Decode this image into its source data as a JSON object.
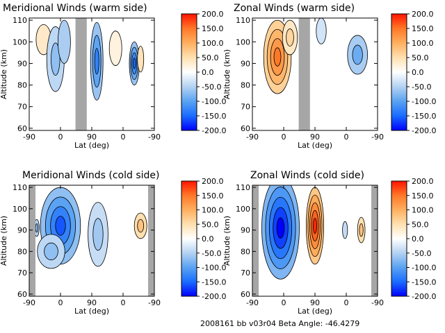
{
  "colors": {
    "scale": [
      "#0000ff",
      "#1a6cff",
      "#5aa2f2",
      "#b4d2f2",
      "#ffffff",
      "#ffe0b0",
      "#ffb060",
      "#ff7828",
      "#ff1400"
    ],
    "gap": "#a6a6a6",
    "contour": "#000000"
  },
  "footer": {
    "text": "2008161 bb v03r04   Beta Angle: -46.4279"
  },
  "chart_data": [
    {
      "type": "heatmap",
      "title": "Meridional Winds (warm side)",
      "xlabel": "Lat (deg)",
      "ylabel": "Altitude (km)",
      "xticks": [
        "-90",
        "0",
        "90",
        "0",
        "-90"
      ],
      "yticks": [
        60,
        70,
        80,
        90,
        100,
        110
      ],
      "ylim": [
        59,
        111
      ],
      "colorbar": {
        "range": [
          -200,
          200
        ],
        "ticks": [
          "200.0",
          "150.0",
          "100.0",
          "50.0",
          "0.0",
          "-50.0",
          "-100.0",
          "-150.0",
          "-200.0"
        ]
      },
      "gaps": [
        [
          74,
          92
        ]
      ],
      "features": [
        {
          "lat": 23,
          "alt": 101,
          "value": 35,
          "wl": 12,
          "wa": 7
        },
        {
          "lat": 42,
          "alt": 92,
          "value": -70,
          "wl": 14,
          "wa": 15
        },
        {
          "lat": 56,
          "alt": 100,
          "value": -55,
          "wl": 10,
          "wa": 10
        },
        {
          "lat": 108,
          "alt": 91,
          "value": -130,
          "wl": 10,
          "wa": 18
        },
        {
          "lat": 138,
          "alt": 97,
          "value": 20,
          "wl": 10,
          "wa": 8
        },
        {
          "lat": 168,
          "alt": 90,
          "value": -150,
          "wl": 8,
          "wa": 10
        },
        {
          "lat": 178,
          "alt": 92,
          "value": 45,
          "wl": 5,
          "wa": 6
        }
      ]
    },
    {
      "type": "heatmap",
      "title": "Zonal Winds (warm side)",
      "xlabel": "Lat (deg)",
      "ylabel": "Altitude (km)",
      "xticks": [
        "-90",
        "0",
        "90",
        "0",
        "-90"
      ],
      "yticks": [
        60,
        70,
        80,
        90,
        100,
        110
      ],
      "ylim": [
        59,
        111
      ],
      "colorbar": {
        "range": [
          -200,
          200
        ],
        "ticks": [
          "200.0",
          "150.0",
          "100.0",
          "50.0",
          "0.0",
          "-50.0",
          "-100.0",
          "-150.0",
          "-200.0"
        ]
      },
      "gaps": [
        [
          74,
          92
        ]
      ],
      "features": [
        {
          "lat": 40,
          "alt": 93,
          "value": 150,
          "wl": 22,
          "wa": 17
        },
        {
          "lat": 60,
          "alt": 102,
          "value": 60,
          "wl": 12,
          "wa": 8
        },
        {
          "lat": 110,
          "alt": 105,
          "value": -30,
          "wl": 8,
          "wa": 6
        },
        {
          "lat": 168,
          "alt": 94,
          "value": -90,
          "wl": 16,
          "wa": 9
        }
      ]
    },
    {
      "type": "heatmap",
      "title": "Meridional Winds (cold side)",
      "xlabel": "Lat (deg)",
      "ylabel": "Altitude (km)",
      "xticks": [
        "-90",
        "0",
        "90",
        "0",
        "-90"
      ],
      "yticks": [
        60,
        70,
        80,
        90,
        100,
        110
      ],
      "ylim": [
        59,
        111
      ],
      "colorbar": {
        "range": [
          -200,
          200
        ],
        "ticks": [
          "200.0",
          "150.0",
          "100.0",
          "50.0",
          "0.0",
          "-50.0",
          "-100.0",
          "-150.0",
          "-200.0"
        ]
      },
      "gaps": [
        [
          0,
          10
        ],
        [
          190,
          200
        ]
      ],
      "features": [
        {
          "lat": 50,
          "alt": 92,
          "value": -160,
          "wl": 32,
          "wa": 18
        },
        {
          "lat": 35,
          "alt": 80,
          "value": -70,
          "wl": 22,
          "wa": 8
        },
        {
          "lat": 110,
          "alt": 88,
          "value": -60,
          "wl": 16,
          "wa": 15
        },
        {
          "lat": 178,
          "alt": 92,
          "value": 80,
          "wl": 10,
          "wa": 6
        },
        {
          "lat": 12,
          "alt": 91,
          "value": -80,
          "wl": 4,
          "wa": 4
        }
      ]
    },
    {
      "type": "heatmap",
      "title": "Zonal Winds (cold side)",
      "xlabel": "Lat (deg)",
      "ylabel": "Altitude (km)",
      "xticks": [
        "-90",
        "0",
        "90",
        "0",
        "-90"
      ],
      "yticks": [
        60,
        70,
        80,
        90,
        100,
        110
      ],
      "ylim": [
        59,
        111
      ],
      "colorbar": {
        "range": [
          -200,
          200
        ],
        "ticks": [
          "200.0",
          "150.0",
          "100.0",
          "50.0",
          "0.0",
          "-50.0",
          "-100.0",
          "-150.0",
          "-200.0"
        ]
      },
      "gaps": [
        [
          0,
          10
        ],
        [
          190,
          200
        ]
      ],
      "features": [
        {
          "lat": 45,
          "alt": 91,
          "value": -200,
          "wl": 30,
          "wa": 24
        },
        {
          "lat": 100,
          "alt": 92,
          "value": 190,
          "wl": 14,
          "wa": 18
        },
        {
          "lat": 148,
          "alt": 90,
          "value": -40,
          "wl": 4,
          "wa": 4
        },
        {
          "lat": 174,
          "alt": 90,
          "value": 80,
          "wl": 6,
          "wa": 6
        }
      ]
    }
  ]
}
